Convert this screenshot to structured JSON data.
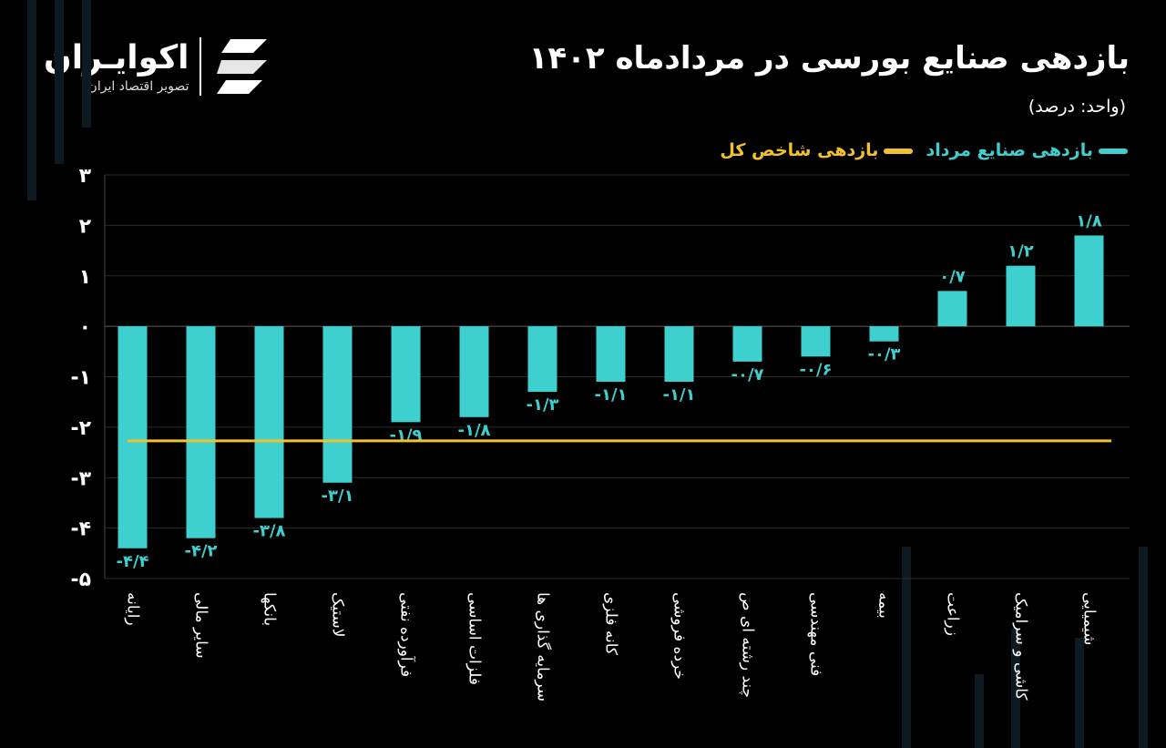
{
  "header": {
    "title": "بازدهی صنایع بورسی در مردادماه ۱۴۰۲",
    "unit": "(واحد: درصد)",
    "logo_name": "اکوایـران",
    "logo_sub": "تصویر اقتصاد ایران"
  },
  "colors": {
    "bars": "#3ecfcf",
    "index_line": "#f2c12e",
    "background": "#000000"
  },
  "chart_data": {
    "type": "bar",
    "title": "بازدهی صنایع بورسی در مردادماه ۱۴۰۲",
    "ylabel": "",
    "xlabel": "",
    "ylim": [
      -5,
      3
    ],
    "yticks": [
      3,
      2,
      1,
      0,
      -1,
      -2,
      -3,
      -4,
      -5
    ],
    "ytick_labels": [
      "۳",
      "۲",
      "۱",
      "۰",
      "-۱",
      "-۲",
      "-۳",
      "-۴",
      "-۵"
    ],
    "grid": true,
    "legend_position": "top-right",
    "categories": [
      "رایانه",
      "سایر مالی",
      "بانکها",
      "لاستیک",
      "فرآورده نفتی",
      "فلزات اساسی",
      "سرمایه گذاری ها",
      "کانه فلزی",
      "خرده فروشی",
      "چند رشته ای ص",
      "فنی مهندسی",
      "بیمه",
      "زراعت",
      "کاشی و سرامیک",
      "شیمیایی"
    ],
    "series": [
      {
        "name": "بازدهی صنایع مرداد",
        "type": "bar",
        "values": [
          -4.4,
          -4.2,
          -3.8,
          -3.1,
          -1.9,
          -1.8,
          -1.3,
          -1.1,
          -1.1,
          -0.7,
          -0.6,
          -0.3,
          0.7,
          1.2,
          1.8
        ],
        "labels": [
          "-۴/۴",
          "-۴/۲",
          "-۳/۸",
          "-۳/۱",
          "-۱/۹",
          "-۱/۸",
          "-۱/۳",
          "-۱/۱",
          "-۱/۱",
          "-۰/۷",
          "-۰/۶",
          "-۰/۳",
          "۰/۷",
          "۱/۲",
          "۱/۸"
        ]
      },
      {
        "name": "بازدهی شاخص کل",
        "type": "line",
        "value": -2.27
      }
    ]
  }
}
